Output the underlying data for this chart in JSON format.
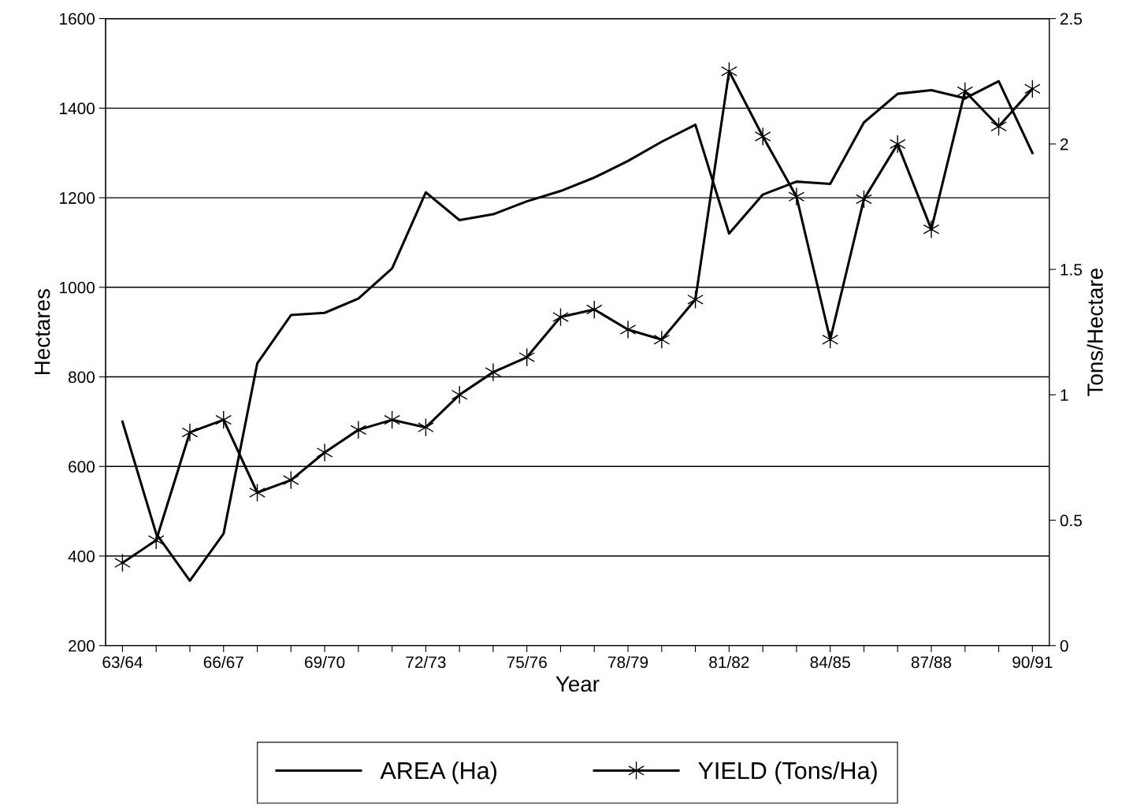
{
  "chart_data": {
    "type": "line",
    "xlabel": "Year",
    "ylabel": "Hectares",
    "y2label": "Tons/Hectare",
    "categories": [
      "63/64",
      null,
      null,
      "66/67",
      null,
      null,
      "69/70",
      null,
      null,
      "72/73",
      null,
      null,
      "75/76",
      null,
      null,
      "78/79",
      null,
      null,
      "81/82",
      null,
      null,
      "84/85",
      null,
      null,
      "87/88",
      null,
      null,
      "90/91"
    ],
    "series": [
      {
        "name": "AREA (Ha)",
        "color": "#000000",
        "marker": "none",
        "values": [
          700,
          450,
          345,
          450,
          830,
          938,
          943,
          975,
          1042,
          1212,
          1150,
          1163,
          1192,
          1215,
          1245,
          1282,
          1325,
          1363,
          1120,
          1207,
          1236,
          1231,
          1368,
          1432,
          1440,
          1422,
          1460,
          1300
        ]
      },
      {
        "name": "YIELD (Tons/Ha)",
        "color": "#000000",
        "marker": "cross",
        "axis": "y2",
        "values": [
          0.33,
          0.42,
          0.85,
          0.9,
          0.61,
          0.66,
          0.77,
          0.86,
          0.9,
          0.87,
          1.0,
          1.09,
          1.15,
          1.31,
          1.34,
          1.26,
          1.22,
          1.38,
          2.29,
          2.03,
          1.79,
          1.22,
          1.78,
          2.0,
          1.66,
          2.21,
          2.07,
          2.22
        ]
      }
    ],
    "ylim": [
      200,
      1600
    ],
    "yticks": [
      200,
      400,
      600,
      800,
      1000,
      1200,
      1400,
      1600
    ],
    "y2lim": [
      0,
      2.5
    ],
    "y2ticks": [
      0,
      0.5,
      1,
      1.5,
      2,
      2.5
    ],
    "grid": "y",
    "legend": "bottom",
    "line_style": "solid"
  }
}
